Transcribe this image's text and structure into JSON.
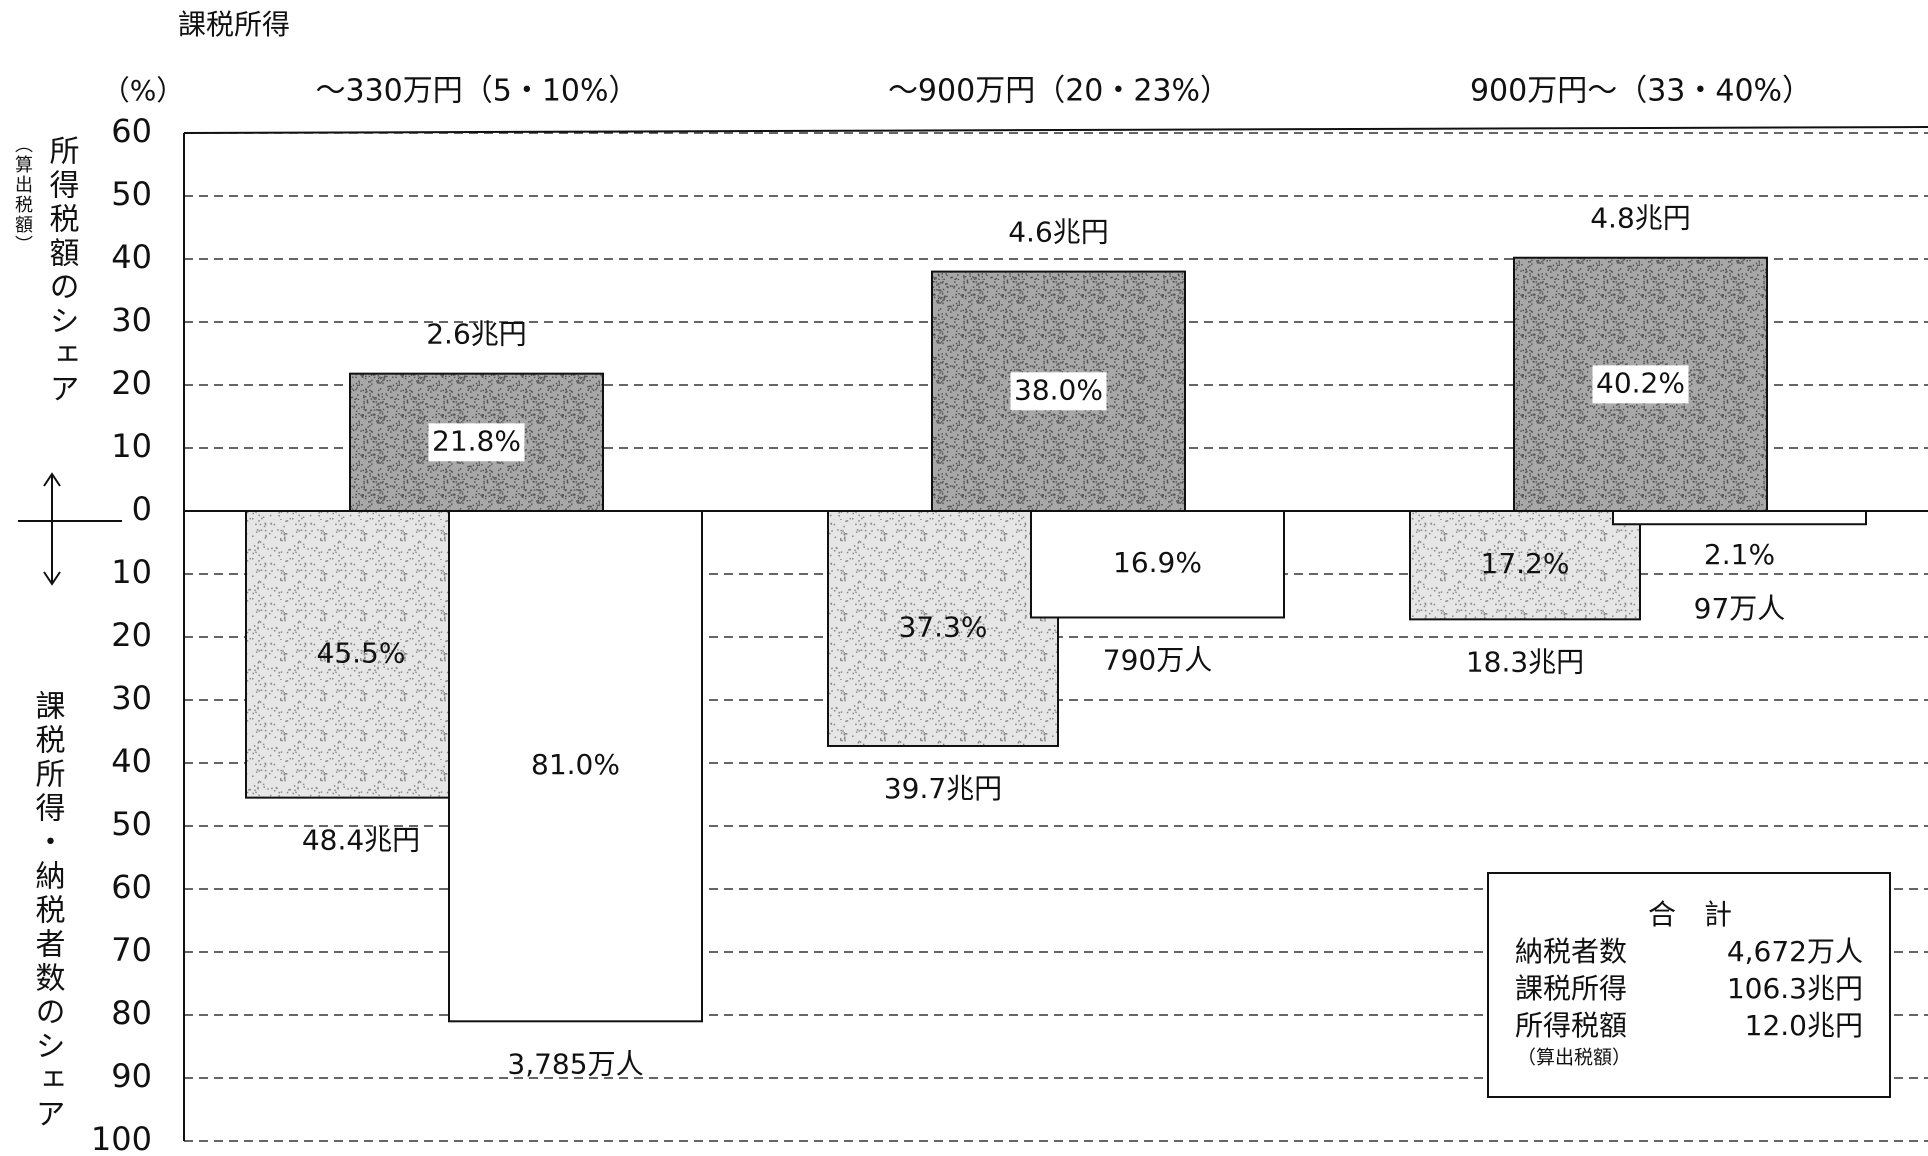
{
  "chart_data": {
    "type": "diverging-bar",
    "header": "課税所得",
    "unit_label": "（%）",
    "y_label": "所得税額のシェア",
    "y_label_note": "（算出税額）",
    "y2_label": "課税所得・納税者数のシェア",
    "categories": [
      "～330万円（5・10%）",
      "～900万円（20・23%）",
      "900万円～（33・40%）"
    ],
    "ylim": [
      0,
      60
    ],
    "yticks": [
      0,
      10,
      20,
      30,
      40,
      50,
      60
    ],
    "y2lim": [
      0,
      100
    ],
    "y2ticks": [
      10,
      20,
      30,
      40,
      50,
      60,
      70,
      80,
      90,
      100
    ],
    "y2_direction": "down",
    "grid": true,
    "series": [
      {
        "values": [
          21.8,
          38.0,
          40.2
        ],
        "value_labels": [
          "21.8%",
          "38.0%",
          "40.2%"
        ],
        "amount_labels": [
          "2.6兆円",
          "4.6兆円",
          "4.8兆円"
        ],
        "color": "#a8a8a8",
        "axis": "y"
      },
      {
        "values": [
          45.5,
          37.3,
          17.2
        ],
        "value_labels": [
          "45.5%",
          "37.3%",
          "17.2%"
        ],
        "amount_labels": [
          "48.4兆円",
          "39.7兆円",
          "18.3兆円"
        ],
        "color": "#e6e6e6",
        "axis": "y2"
      },
      {
        "values": [
          81.0,
          16.9,
          2.1
        ],
        "value_labels": [
          "81.0%",
          "16.9%",
          "2.1%"
        ],
        "amount_labels": [
          "3,785万人",
          "790万人",
          "97万人"
        ],
        "color": "#ffffff",
        "axis": "y2"
      }
    ],
    "totals": {
      "title": "合　計",
      "rows": [
        [
          "納税者数",
          "4,672万人"
        ],
        [
          "課税所得",
          "106.3兆円"
        ],
        [
          "所得税額",
          "12.0兆円"
        ]
      ],
      "note": "（算出税額）"
    }
  }
}
